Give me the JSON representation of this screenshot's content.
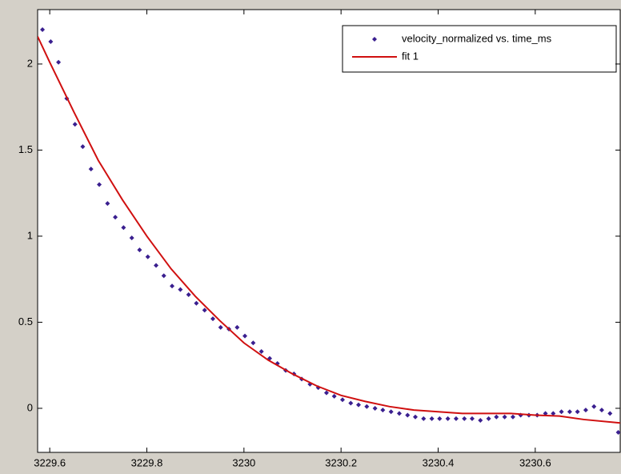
{
  "chart_data": {
    "type": "scatter",
    "xlim": [
      3229.575,
      3230.775
    ],
    "ylim": [
      -0.256,
      2.316
    ],
    "xticks": [
      3229.6,
      3229.8,
      3230,
      3230.2,
      3230.4,
      3230.6
    ],
    "yticks": [
      0,
      0.5,
      1,
      1.5,
      2
    ],
    "legend": "northeast",
    "series": [
      {
        "name": "velocity_normalized vs. time_ms",
        "type": "scatter",
        "color": "#3a1f8f",
        "x": [
          3229.585,
          3229.602,
          3229.618,
          3229.635,
          3229.652,
          3229.668,
          3229.685,
          3229.702,
          3229.719,
          3229.735,
          3229.752,
          3229.769,
          3229.785,
          3229.802,
          3229.819,
          3229.835,
          3229.852,
          3229.869,
          3229.886,
          3229.902,
          3229.919,
          3229.936,
          3229.952,
          3229.969,
          3229.986,
          3230.002,
          3230.019,
          3230.036,
          3230.053,
          3230.069,
          3230.086,
          3230.103,
          3230.119,
          3230.136,
          3230.153,
          3230.17,
          3230.186,
          3230.203,
          3230.22,
          3230.236,
          3230.253,
          3230.27,
          3230.286,
          3230.303,
          3230.32,
          3230.337,
          3230.353,
          3230.37,
          3230.387,
          3230.403,
          3230.42,
          3230.437,
          3230.454,
          3230.47,
          3230.487,
          3230.504,
          3230.52,
          3230.537,
          3230.554,
          3230.57,
          3230.587,
          3230.604,
          3230.621,
          3230.637,
          3230.654,
          3230.671,
          3230.687,
          3230.704,
          3230.721,
          3230.737,
          3230.754,
          3230.771
        ],
        "values": [
          2.2,
          2.13,
          2.01,
          1.8,
          1.65,
          1.52,
          1.39,
          1.3,
          1.19,
          1.11,
          1.05,
          0.99,
          0.92,
          0.88,
          0.83,
          0.77,
          0.71,
          0.69,
          0.66,
          0.61,
          0.57,
          0.52,
          0.47,
          0.46,
          0.47,
          0.42,
          0.38,
          0.33,
          0.29,
          0.26,
          0.22,
          0.2,
          0.17,
          0.14,
          0.12,
          0.09,
          0.07,
          0.05,
          0.03,
          0.02,
          0.01,
          0.0,
          -0.01,
          -0.02,
          -0.03,
          -0.04,
          -0.05,
          -0.06,
          -0.06,
          -0.06,
          -0.06,
          -0.06,
          -0.06,
          -0.06,
          -0.07,
          -0.06,
          -0.05,
          -0.05,
          -0.05,
          -0.04,
          -0.04,
          -0.04,
          -0.03,
          -0.03,
          -0.02,
          -0.02,
          -0.02,
          -0.01,
          0.01,
          -0.01,
          -0.03,
          -0.14
        ]
      },
      {
        "name": "fit 1",
        "type": "line",
        "color": "#d01010",
        "x": [
          3229.575,
          3229.6,
          3229.65,
          3229.7,
          3229.75,
          3229.8,
          3229.85,
          3229.9,
          3229.95,
          3230,
          3230.05,
          3230.1,
          3230.15,
          3230.2,
          3230.25,
          3230.3,
          3230.35,
          3230.4,
          3230.45,
          3230.5,
          3230.55,
          3230.6,
          3230.65,
          3230.7,
          3230.775
        ],
        "values": [
          2.16,
          2.01,
          1.72,
          1.44,
          1.21,
          1.0,
          0.81,
          0.65,
          0.51,
          0.38,
          0.28,
          0.2,
          0.13,
          0.075,
          0.04,
          0.01,
          -0.01,
          -0.02,
          -0.03,
          -0.03,
          -0.03,
          -0.04,
          -0.045,
          -0.065,
          -0.085
        ]
      }
    ]
  }
}
